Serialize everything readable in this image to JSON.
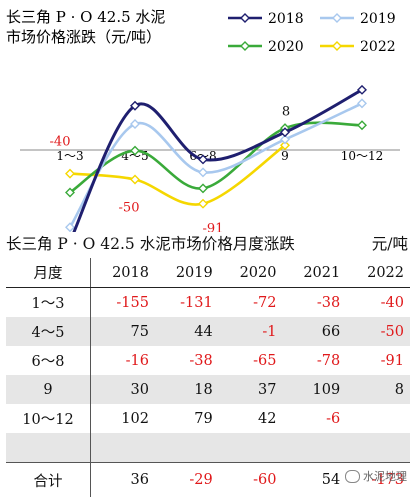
{
  "chart_data": {
    "type": "line",
    "title": "长三角 P·O 42.5 水泥市场价格涨跌（元/吨）",
    "title_lines": [
      "长三角 P · O 42.5 水泥",
      "市场价格涨跌（元/吨）"
    ],
    "categories": [
      "1～3",
      "4～5",
      "6～8",
      "9",
      "10～12"
    ],
    "series": [
      {
        "name": "2018",
        "color": "#1f1f6f",
        "values": [
          -155,
          75,
          -16,
          30,
          102
        ]
      },
      {
        "name": "2019",
        "color": "#a8c8ee",
        "values": [
          -131,
          44,
          -38,
          18,
          79
        ]
      },
      {
        "name": "2020",
        "color": "#3aaa3a",
        "values": [
          -72,
          -1,
          -65,
          37,
          42
        ]
      },
      {
        "name": "2022",
        "color": "#f5d700",
        "values": [
          -40,
          -50,
          -91,
          8,
          null
        ]
      }
    ],
    "annotations": [
      {
        "text": "-40",
        "category": "1～3",
        "value": -40,
        "color": "#e0191b"
      },
      {
        "text": "-50",
        "category": "4～5",
        "value": -50,
        "color": "#e0191b"
      },
      {
        "text": "-91",
        "category": "6～8",
        "value": -91,
        "color": "#e0191b"
      },
      {
        "text": "8",
        "category": "9",
        "value": 8,
        "color": "#111111"
      }
    ],
    "ylim": [
      -170,
      120
    ],
    "grid": false,
    "legend_position": "top-right",
    "xlabel": "",
    "ylabel": ""
  },
  "table": {
    "title": "长三角 P · O 42.5 水泥市场价格月度涨跌",
    "unit": "元/吨",
    "header": [
      "月度",
      "2018",
      "2019",
      "2020",
      "2021",
      "2022"
    ],
    "rows": [
      [
        "1～3",
        "-155",
        "-131",
        "-72",
        "-38",
        "-40"
      ],
      [
        "4～5",
        "75",
        "44",
        "-1",
        "66",
        "-50"
      ],
      [
        "6～8",
        "-16",
        "-38",
        "-65",
        "-78",
        "-91"
      ],
      [
        "9",
        "30",
        "18",
        "37",
        "109",
        "8"
      ],
      [
        "10～12",
        "102",
        "79",
        "42",
        "-6",
        ""
      ],
      [
        "",
        "",
        "",
        "",
        "",
        ""
      ]
    ],
    "total": [
      "合计",
      "36",
      "-29",
      "-60",
      "54",
      "-173"
    ]
  },
  "watermark": "水泥地理"
}
